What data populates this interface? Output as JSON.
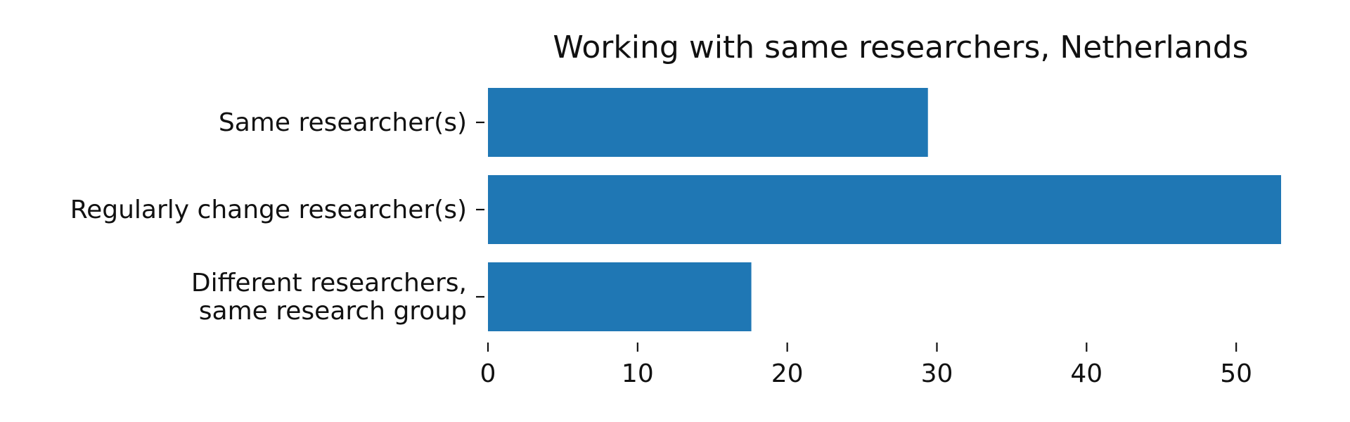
{
  "chart_data": {
    "type": "bar",
    "orientation": "horizontal",
    "title": "Working with same researchers, Netherlands",
    "categories": [
      [
        "Same researcher(s)"
      ],
      [
        "Regularly change researcher(s)"
      ],
      [
        "Different researchers,",
        "same research group"
      ]
    ],
    "values": [
      29.4,
      53.0,
      17.6
    ],
    "xlim": [
      0,
      53
    ],
    "xticks": [
      0,
      10,
      20,
      30,
      40,
      50
    ],
    "xlabel": "",
    "ylabel": "",
    "grid": false,
    "bar_color": "#1f77b4"
  }
}
